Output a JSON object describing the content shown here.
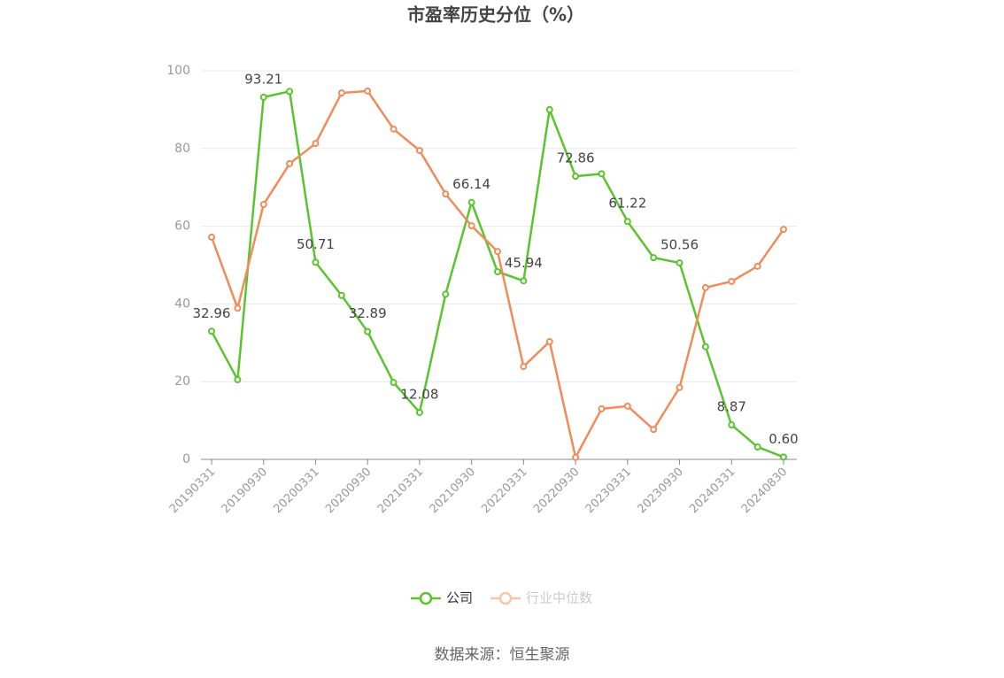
{
  "chart_data": {
    "type": "line",
    "title": "市盈率历史分位（%）",
    "categories": [
      "20190331",
      null,
      "20190930",
      null,
      "20200331",
      null,
      "20200930",
      null,
      "20210331",
      null,
      "20210930",
      null,
      "20220331",
      null,
      "20220930",
      null,
      "20230331",
      null,
      "20230930",
      null,
      "20240331",
      null,
      "20240830"
    ],
    "series": [
      {
        "name": "公司",
        "color": "#5ac42f",
        "values": [
          32.96,
          20.5,
          93.21,
          94.7,
          50.71,
          42.2,
          32.89,
          19.8,
          12.08,
          42.5,
          66.14,
          48.3,
          45.94,
          90.0,
          72.86,
          73.5,
          61.22,
          51.9,
          50.56,
          29.0,
          8.87,
          3.2,
          0.6
        ],
        "value_labels": [
          "32.96",
          null,
          "93.21",
          null,
          "50.71",
          null,
          "32.89",
          null,
          "12.08",
          null,
          "66.14",
          null,
          "45.94",
          null,
          "72.86",
          null,
          "61.22",
          null,
          "50.56",
          null,
          "8.87",
          null,
          "0.60"
        ]
      },
      {
        "name": "行业中位数",
        "color": "#f08c5a",
        "values": [
          57.2,
          38.9,
          65.6,
          76.1,
          81.3,
          94.3,
          94.8,
          85.0,
          79.5,
          68.3,
          60.1,
          53.5,
          23.9,
          30.3,
          0.5,
          13.0,
          13.7,
          7.7,
          18.5,
          44.2,
          45.8,
          49.7,
          59.2
        ]
      }
    ],
    "ylim": [
      0,
      100
    ],
    "yticks": [
      0,
      20,
      40,
      60,
      80,
      100
    ],
    "grid": true,
    "source": "数据来源：恒生聚源"
  }
}
